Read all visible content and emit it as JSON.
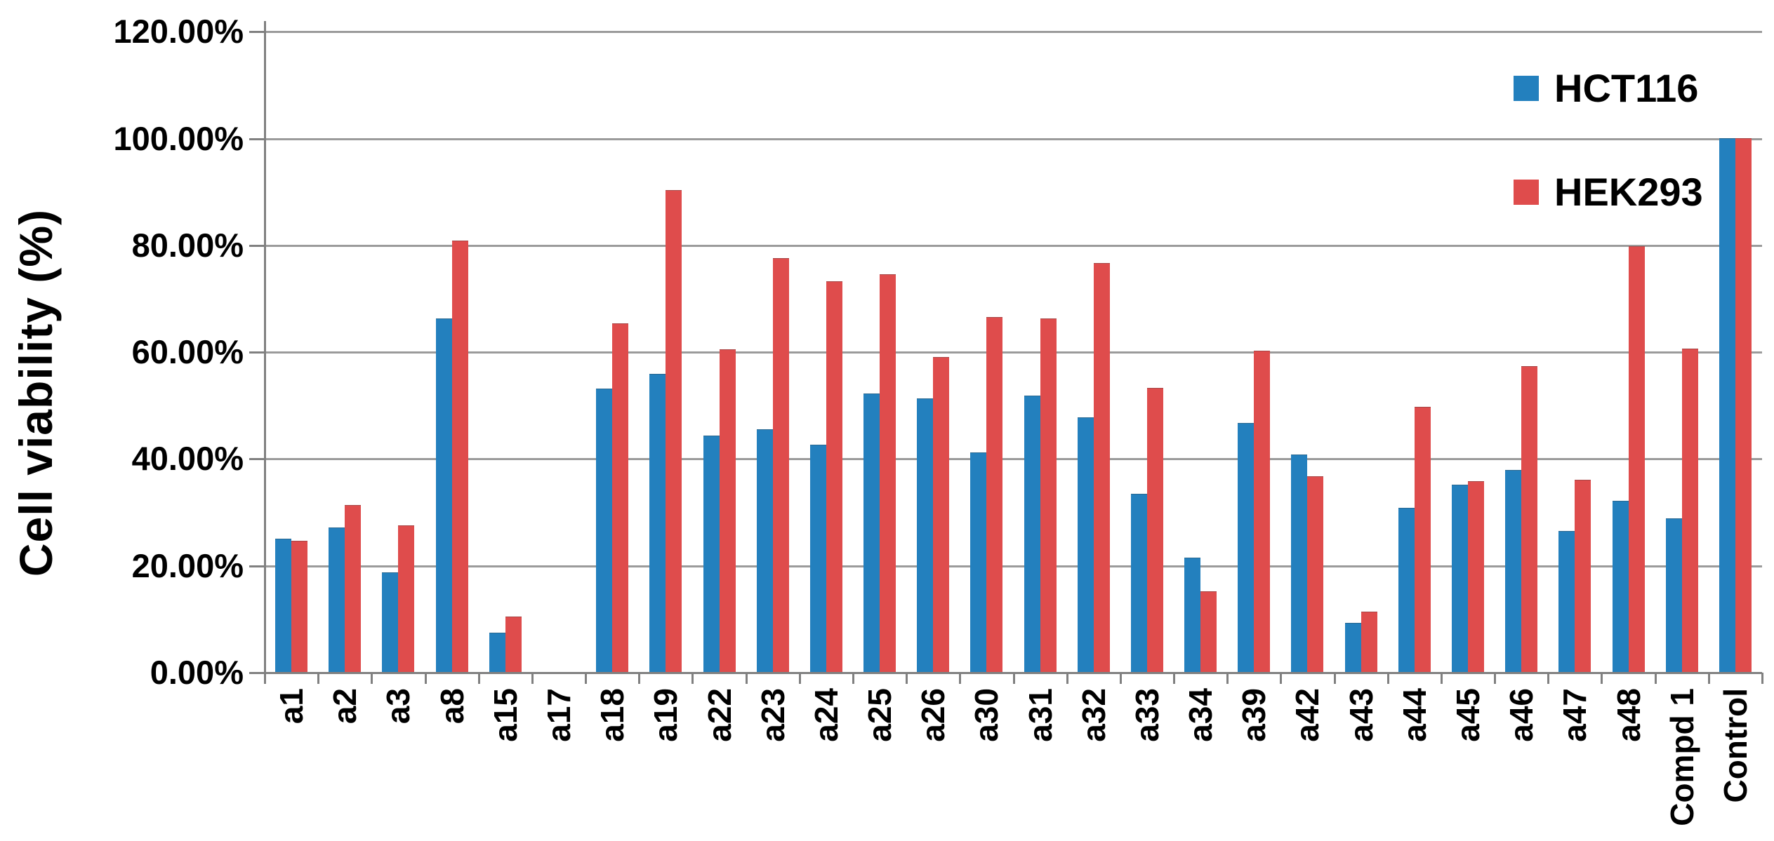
{
  "chart_data": {
    "type": "bar",
    "title": "",
    "xlabel": "",
    "ylabel": "Cell viability (%)",
    "ylim": [
      0,
      120
    ],
    "grid": true,
    "legend_position": "top-right",
    "ytick_values": [
      0,
      20,
      40,
      60,
      80,
      100,
      120
    ],
    "ytick_labels": [
      "0.00%",
      "20.00%",
      "40.00%",
      "60.00%",
      "80.00%",
      "100.00%",
      "120.00%"
    ],
    "categories": [
      "a1",
      "a2",
      "a3",
      "a8",
      "a15",
      "a17",
      "a18",
      "a19",
      "a22",
      "a23",
      "a24",
      "a25",
      "a26",
      "a30",
      "a31",
      "a32",
      "a33",
      "a34",
      "a39",
      "a42",
      "a43",
      "a44",
      "a45",
      "a46",
      "a47",
      "a48",
      "Compd 1",
      "Control"
    ],
    "series": [
      {
        "name": "HCT116",
        "color": "#2380BE",
        "values": [
          25.0,
          27.1,
          18.6,
          66.2,
          7.3,
          0,
          53.0,
          55.8,
          44.2,
          45.5,
          42.6,
          52.1,
          51.2,
          41.1,
          51.7,
          47.7,
          33.3,
          21.4,
          46.6,
          40.7,
          9.2,
          30.7,
          35.0,
          37.8,
          26.4,
          32.1,
          28.8,
          100.0
        ]
      },
      {
        "name": "HEK293",
        "color": "#DF4C4C",
        "values": [
          24.6,
          31.2,
          27.5,
          80.7,
          10.4,
          0,
          65.3,
          90.2,
          60.4,
          77.5,
          73.2,
          74.5,
          59.0,
          66.5,
          66.2,
          76.6,
          53.2,
          15.1,
          60.1,
          36.7,
          11.3,
          49.6,
          35.7,
          57.3,
          36.0,
          79.7,
          60.5,
          100.0
        ]
      }
    ],
    "colors": {
      "gridline": "#9b9b9b",
      "axis": "#808080",
      "text": "#000000"
    }
  }
}
